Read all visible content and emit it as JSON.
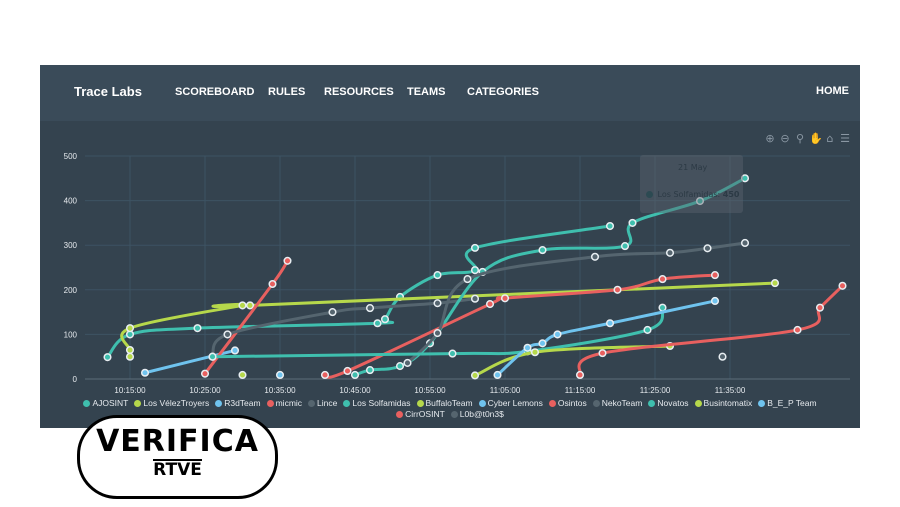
{
  "nav": {
    "brand": "Trace Labs",
    "items": [
      "SCOREBOARD",
      "RULES",
      "RESOURCES",
      "TEAMS",
      "CATEGORIES"
    ],
    "home": "HOME"
  },
  "toolbar": [
    "zoom-in-icon",
    "zoom-out-icon",
    "zoom-selection-icon",
    "pan-hand-icon",
    "reset-home-icon",
    "menu-icon"
  ],
  "tooltip": {
    "date": "21 May",
    "series": "Los Solfamidas",
    "value": "450"
  },
  "logo": {
    "top": "VERIFICA",
    "bottom": "RTVE"
  },
  "chart_data": {
    "type": "line",
    "xlim": [
      "10:09",
      "11:51"
    ],
    "ylim": [
      0,
      500
    ],
    "grid": true,
    "legend": "bottom",
    "x_ticks": [
      "10:15:00",
      "10:25:00",
      "10:35:00",
      "10:45:00",
      "10:55:00",
      "11:05:00",
      "11:15:00",
      "11:25:00",
      "11:35:00"
    ],
    "y_ticks": [
      0,
      100,
      200,
      300,
      400,
      500
    ],
    "series": [
      {
        "name": "AJOSINT",
        "color": "#3fbfae",
        "points": [
          [
            "10:12",
            49
          ],
          [
            "10:15",
            100
          ],
          [
            "10:24",
            114
          ],
          [
            "10:48",
            125
          ],
          [
            "10:49",
            134
          ],
          [
            "10:51",
            184
          ],
          [
            "10:56",
            233
          ],
          [
            "11:01",
            244
          ],
          [
            "11:01",
            294
          ],
          [
            "11:19",
            343
          ]
        ]
      },
      {
        "name": "Los VélezTroyers",
        "color": "#b6d84b",
        "points": [
          [
            "10:15",
            50
          ],
          [
            "10:15",
            65
          ],
          [
            "10:15",
            114
          ],
          [
            "10:30",
            165
          ],
          [
            "10:31",
            165
          ],
          [
            "11:41",
            215
          ]
        ]
      },
      {
        "name": "R3dTeam",
        "color": "#6fc3ee",
        "points": [
          [
            "10:17",
            14
          ],
          [
            "10:29",
            64
          ]
        ]
      },
      {
        "name": "micmic",
        "color": "#e8605f",
        "points": [
          [
            "10:25",
            12
          ],
          [
            "10:34",
            213
          ],
          [
            "10:36",
            265
          ]
        ]
      },
      {
        "name": "Lince",
        "color": "#55656f",
        "points": [
          [
            "10:26",
            50
          ],
          [
            "10:28",
            100
          ],
          [
            "10:42",
            150
          ],
          [
            "10:47",
            159
          ],
          [
            "10:56",
            170
          ],
          [
            "11:01",
            180
          ]
        ]
      },
      {
        "name": "Los Solfamidas",
        "color": "#3fbfae",
        "points": [
          [
            "10:45",
            9
          ],
          [
            "10:47",
            20
          ],
          [
            "10:51",
            29
          ],
          [
            "10:55",
            80
          ],
          [
            "11:02",
            240
          ],
          [
            "11:10",
            289
          ],
          [
            "11:21",
            298
          ],
          [
            "11:22",
            350
          ],
          [
            "11:31",
            399
          ],
          [
            "11:37",
            450
          ]
        ]
      },
      {
        "name": "BuffaloTeam",
        "color": "#b6d84b",
        "points": [
          [
            "10:30",
            9
          ]
        ]
      },
      {
        "name": "Cyber Lemons",
        "color": "#6fc3ee",
        "points": [
          [
            "10:35",
            9
          ]
        ]
      },
      {
        "name": "Osintos",
        "color": "#e8605f",
        "points": [
          [
            "10:41",
            9
          ],
          [
            "10:44",
            18
          ],
          [
            "11:03",
            168
          ],
          [
            "11:05",
            181
          ],
          [
            "11:20",
            200
          ],
          [
            "11:26",
            224
          ],
          [
            "11:33",
            233
          ]
        ]
      },
      {
        "name": "NekoTeam",
        "color": "#55656f",
        "points": [
          [
            "10:52",
            36
          ],
          [
            "10:56",
            103
          ],
          [
            "11:00",
            224
          ],
          [
            "11:17",
            274
          ],
          [
            "11:27",
            283
          ],
          [
            "11:32",
            293
          ],
          [
            "11:37",
            305
          ]
        ]
      },
      {
        "name": "Novatos",
        "color": "#3fbfae",
        "points": [
          [
            "10:26",
            50
          ],
          [
            "10:58",
            57
          ],
          [
            "11:08",
            62
          ],
          [
            "11:24",
            110
          ],
          [
            "11:26",
            160
          ]
        ]
      },
      {
        "name": "Busintomatix",
        "color": "#b6d84b",
        "points": [
          [
            "11:01",
            8
          ],
          [
            "11:09",
            60
          ],
          [
            "11:27",
            74
          ]
        ]
      },
      {
        "name": "B_E_P Team",
        "color": "#6fc3ee",
        "points": [
          [
            "11:04",
            9
          ],
          [
            "11:08",
            70
          ],
          [
            "11:10",
            80
          ],
          [
            "11:12",
            100
          ],
          [
            "11:19",
            125
          ],
          [
            "11:33",
            175
          ]
        ]
      },
      {
        "name": "CirrOSINT",
        "color": "#e8605f",
        "points": [
          [
            "11:15",
            9
          ],
          [
            "11:18",
            58
          ],
          [
            "11:44",
            110
          ],
          [
            "11:47",
            160
          ],
          [
            "11:50",
            209
          ]
        ]
      },
      {
        "name": "L0b@t0n3$",
        "color": "#55656f",
        "points": [
          [
            "11:34",
            50
          ]
        ]
      }
    ]
  }
}
